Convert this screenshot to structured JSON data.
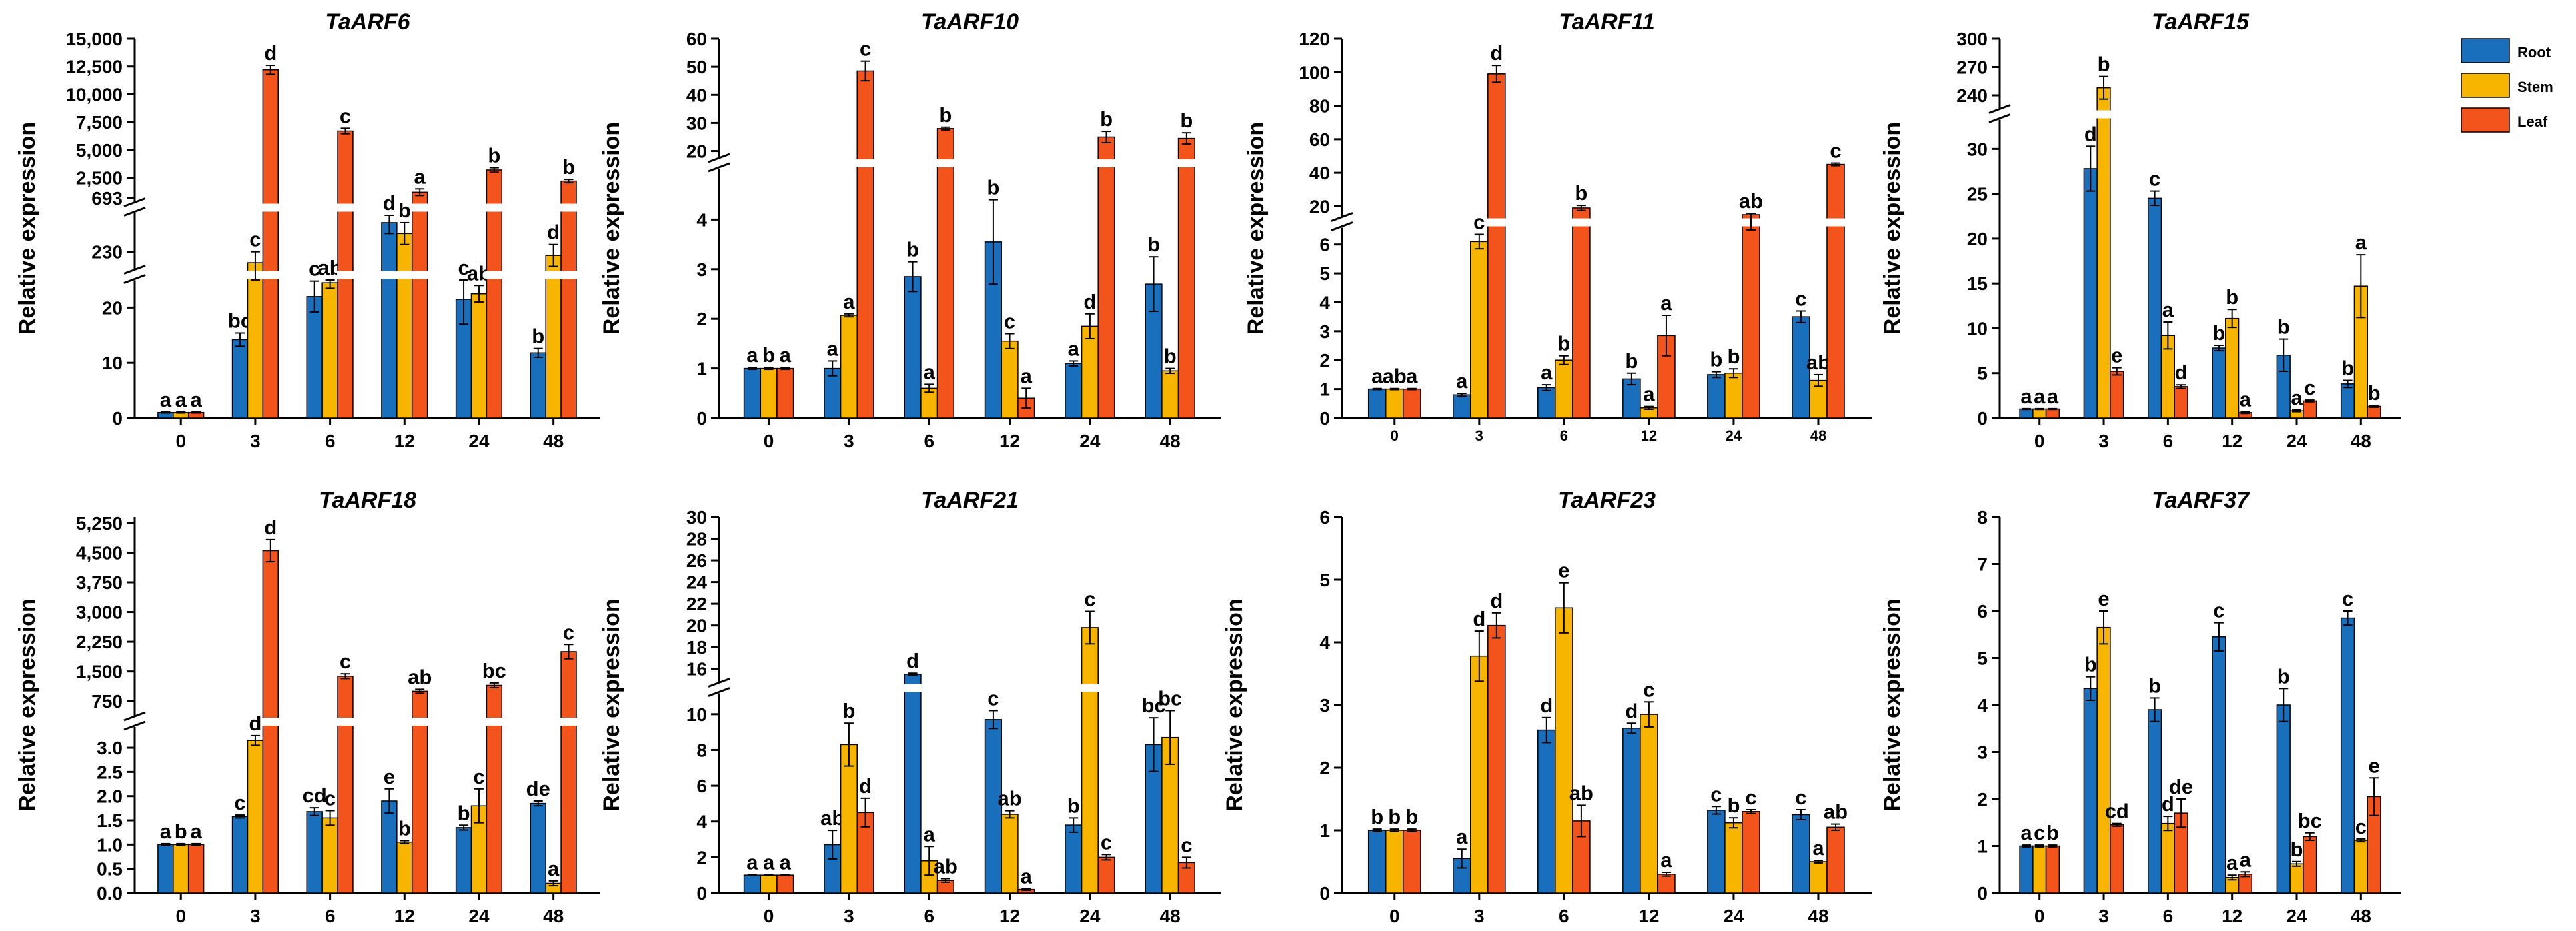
{
  "figure": {
    "ylabel": "Relative expression",
    "colors": {
      "Root": "#1a6fbd",
      "Stem": "#f7b500",
      "Leaf": "#f2541b"
    },
    "legend": [
      "Root",
      "Stem",
      "Leaf"
    ],
    "xticks": [
      "0",
      "3",
      "6",
      "12",
      "24",
      "48"
    ]
  },
  "chart_data": [
    {
      "type": "bar",
      "title": "TaARF6",
      "xlabel": "",
      "ylabel": "Relative expression",
      "categories": [
        "0",
        "3",
        "6",
        "12",
        "24",
        "48"
      ],
      "y_axis_breaks": [
        [
          25,
          225
        ],
        [
          240,
          500
        ]
      ],
      "yticks": [
        "0",
        "10",
        "20",
        "230",
        "693",
        "2,500",
        "5,000",
        "7,500",
        "10,000",
        "12,500",
        "15,000"
      ],
      "series": [
        {
          "name": "Root",
          "values": [
            1,
            14.2,
            22,
            238,
            21.5,
            11.8
          ],
          "errors": [
            0.1,
            1.2,
            2.8,
            3,
            4.5,
            0.8
          ],
          "labels": [
            "a",
            "bc",
            "c",
            "d",
            "c",
            "b"
          ]
        },
        {
          "name": "Stem",
          "values": [
            1,
            227,
            24.5,
            235,
            22.5,
            229
          ],
          "errors": [
            0.1,
            3,
            1,
            3,
            1.5,
            3
          ],
          "labels": [
            "a",
            "c",
            "ab",
            "b",
            "ab",
            "d"
          ]
        },
        {
          "name": "Leaf",
          "values": [
            1,
            12200,
            6700,
            1200,
            3200,
            2200
          ],
          "errors": [
            0.1,
            400,
            250,
            300,
            200,
            150
          ],
          "labels": [
            "a",
            "d",
            "c",
            "a",
            "b",
            "b"
          ]
        }
      ]
    },
    {
      "type": "bar",
      "title": "TaARF10",
      "xlabel": "",
      "ylabel": "Relative expression",
      "categories": [
        "0",
        "3",
        "6",
        "12",
        "24",
        "48"
      ],
      "y_axis_breaks": [
        [
          5,
          18
        ]
      ],
      "yticks": [
        "0",
        "1",
        "2",
        "3",
        "4",
        "20",
        "30",
        "40",
        "50",
        "60"
      ],
      "series": [
        {
          "name": "Root",
          "values": [
            1,
            1,
            2.85,
            3.55,
            1.1,
            2.7
          ],
          "errors": [
            0.02,
            0.15,
            0.3,
            0.85,
            0.05,
            0.55
          ],
          "labels": [
            "a",
            "a",
            "b",
            "b",
            "a",
            "b"
          ]
        },
        {
          "name": "Stem",
          "values": [
            1,
            2.07,
            0.6,
            1.55,
            1.85,
            0.95
          ],
          "errors": [
            0.02,
            0.03,
            0.08,
            0.15,
            0.25,
            0.05
          ],
          "labels": [
            "b",
            "a",
            "a",
            "c",
            "d",
            "b"
          ]
        },
        {
          "name": "Leaf",
          "values": [
            1,
            48.5,
            28,
            0.4,
            25,
            24.5
          ],
          "errors": [
            0.02,
            3.5,
            0.5,
            0.2,
            2,
            2
          ],
          "labels": [
            "a",
            "c",
            "b",
            "a",
            "b",
            "b"
          ]
        }
      ]
    },
    {
      "type": "bar",
      "title": "TaARF11",
      "xlabel": "",
      "ylabel": "Relative expression",
      "categories": [
        "0",
        "3",
        "6",
        "12",
        "24",
        "48"
      ],
      "y_axis_breaks": [
        [
          6.5,
          15
        ]
      ],
      "yticks": [
        "0",
        "1",
        "2",
        "3",
        "4",
        "5",
        "6",
        "20",
        "40",
        "60",
        "80",
        "100",
        "120"
      ],
      "series": [
        {
          "name": "Root",
          "values": [
            1,
            0.8,
            1.05,
            1.35,
            1.5,
            3.5
          ],
          "errors": [
            0.02,
            0.05,
            0.1,
            0.2,
            0.1,
            0.2
          ],
          "labels": [
            "a",
            "a",
            "a",
            "b",
            "b",
            "c"
          ]
        },
        {
          "name": "Stem",
          "values": [
            1,
            6.1,
            2,
            0.35,
            1.55,
            1.3
          ],
          "errors": [
            0.02,
            0.25,
            0.15,
            0.05,
            0.15,
            0.2
          ],
          "labels": [
            "ab",
            "c",
            "b",
            "a",
            "b",
            "ab"
          ]
        },
        {
          "name": "Leaf",
          "values": [
            1,
            99,
            19,
            2.85,
            15,
            45
          ],
          "errors": [
            0.02,
            5,
            1.5,
            0.7,
            0.8,
            0.8
          ],
          "labels": [
            "a",
            "d",
            "b",
            "a",
            "ab",
            "c"
          ]
        }
      ]
    },
    {
      "type": "bar",
      "title": "TaARF15",
      "xlabel": "",
      "ylabel": "Relative expression",
      "categories": [
        "0",
        "3",
        "6",
        "12",
        "24",
        "48"
      ],
      "y_axis_breaks": [
        [
          33,
          228
        ]
      ],
      "yticks": [
        "0",
        "5",
        "10",
        "15",
        "20",
        "25",
        "30",
        "240",
        "270",
        "300"
      ],
      "series": [
        {
          "name": "Root",
          "values": [
            1,
            27.8,
            24.5,
            7.8,
            7,
            3.8
          ],
          "errors": [
            0.05,
            2.5,
            0.8,
            0.3,
            1.8,
            0.4
          ],
          "labels": [
            "a",
            "d",
            "c",
            "b",
            "b",
            "b"
          ]
        },
        {
          "name": "Stem",
          "values": [
            1,
            248,
            9.2,
            11.1,
            0.8,
            14.7
          ],
          "errors": [
            0.05,
            12,
            1.5,
            1,
            0.1,
            3.5
          ],
          "labels": [
            "a",
            "b",
            "a",
            "b",
            "a",
            "a"
          ]
        },
        {
          "name": "Leaf",
          "values": [
            1,
            5.2,
            3.5,
            0.6,
            1.9,
            1.3
          ],
          "errors": [
            0.05,
            0.4,
            0.2,
            0.1,
            0.1,
            0.1
          ],
          "labels": [
            "a",
            "e",
            "d",
            "a",
            "c",
            "b"
          ]
        }
      ]
    },
    {
      "type": "bar",
      "title": "TaARF18",
      "xlabel": "",
      "ylabel": "Relative expression",
      "categories": [
        "0",
        "3",
        "6",
        "12",
        "24",
        "48"
      ],
      "y_axis_breaks": [
        [
          3.4,
          400
        ]
      ],
      "yticks": [
        "0.0",
        "0.5",
        "1.0",
        "1.5",
        "2.0",
        "2.5",
        "3.0",
        "750",
        "1,500",
        "2,250",
        "3,000",
        "3,750",
        "4,500",
        "5,250"
      ],
      "series": [
        {
          "name": "Root",
          "values": [
            1,
            1.58,
            1.68,
            1.9,
            1.35,
            1.85
          ],
          "errors": [
            0.02,
            0.03,
            0.08,
            0.25,
            0.05,
            0.05
          ],
          "labels": [
            "a",
            "c",
            "cd",
            "e",
            "b",
            "de"
          ]
        },
        {
          "name": "Stem",
          "values": [
            1,
            3.15,
            1.55,
            1.05,
            1.8,
            0.2
          ],
          "errors": [
            0.02,
            0.1,
            0.15,
            0.03,
            0.35,
            0.05
          ],
          "labels": [
            "b",
            "d",
            "c",
            "b",
            "c",
            "a"
          ]
        },
        {
          "name": "Leaf",
          "values": [
            1,
            4550,
            1380,
            1000,
            1150,
            2000
          ],
          "errors": [
            0.02,
            280,
            60,
            50,
            60,
            180
          ],
          "labels": [
            "a",
            "d",
            "c",
            "ab",
            "bc",
            "c"
          ]
        }
      ]
    },
    {
      "type": "bar",
      "title": "TaARF21",
      "xlabel": "",
      "ylabel": "Relative expression",
      "categories": [
        "0",
        "3",
        "6",
        "12",
        "24",
        "48"
      ],
      "y_axis_breaks": [
        [
          11,
          15
        ]
      ],
      "yticks": [
        "0",
        "2",
        "4",
        "6",
        "8",
        "10",
        "16",
        "18",
        "20",
        "22",
        "24",
        "26",
        "28",
        "30"
      ],
      "series": [
        {
          "name": "Root",
          "values": [
            1,
            2.7,
            15.5,
            9.7,
            3.8,
            8.3
          ],
          "errors": [
            0.02,
            0.8,
            0.1,
            0.5,
            0.4,
            1.5
          ],
          "labels": [
            "a",
            "ab",
            "d",
            "c",
            "b",
            "bc"
          ]
        },
        {
          "name": "Stem",
          "values": [
            1,
            8.3,
            1.8,
            4.4,
            19.8,
            8.7
          ],
          "errors": [
            0.02,
            1.2,
            0.8,
            0.2,
            1.5,
            1.5
          ],
          "labels": [
            "a",
            "b",
            "a",
            "ab",
            "c",
            "bc"
          ]
        },
        {
          "name": "Leaf",
          "values": [
            1,
            4.5,
            0.7,
            0.2,
            2,
            1.7
          ],
          "errors": [
            0.02,
            0.8,
            0.1,
            0.05,
            0.15,
            0.3
          ],
          "labels": [
            "a",
            "d",
            "ab",
            "a",
            "c",
            "c"
          ]
        }
      ]
    },
    {
      "type": "bar",
      "title": "TaARF23",
      "xlabel": "",
      "ylabel": "Relative expression",
      "categories": [
        "0",
        "3",
        "6",
        "12",
        "24",
        "48"
      ],
      "ylim": [
        0,
        6
      ],
      "yticks": [
        "0",
        "1",
        "2",
        "3",
        "4",
        "5",
        "6"
      ],
      "series": [
        {
          "name": "Root",
          "values": [
            1,
            0.55,
            2.6,
            2.63,
            1.32,
            1.25
          ],
          "errors": [
            0.02,
            0.15,
            0.2,
            0.08,
            0.06,
            0.08
          ],
          "labels": [
            "b",
            "a",
            "d",
            "d",
            "c",
            "c"
          ]
        },
        {
          "name": "Stem",
          "values": [
            1,
            3.78,
            4.55,
            2.85,
            1.12,
            0.5
          ],
          "errors": [
            0.02,
            0.4,
            0.4,
            0.2,
            0.08,
            0.02
          ],
          "labels": [
            "b",
            "d",
            "e",
            "c",
            "b",
            "a"
          ]
        },
        {
          "name": "Leaf",
          "values": [
            1,
            4.27,
            1.15,
            0.3,
            1.3,
            1.05
          ],
          "errors": [
            0.02,
            0.2,
            0.25,
            0.03,
            0.03,
            0.05
          ],
          "labels": [
            "b",
            "d",
            "ab",
            "a",
            "c",
            "ab"
          ]
        }
      ]
    },
    {
      "type": "bar",
      "title": "TaARF37",
      "xlabel": "",
      "ylabel": "Relative expression",
      "categories": [
        "0",
        "3",
        "6",
        "12",
        "24",
        "48"
      ],
      "ylim": [
        0,
        8
      ],
      "yticks": [
        "0",
        "1",
        "2",
        "3",
        "4",
        "5",
        "6",
        "7",
        "8"
      ],
      "series": [
        {
          "name": "Root",
          "values": [
            1,
            4.35,
            3.9,
            5.45,
            4,
            5.85
          ],
          "errors": [
            0.02,
            0.25,
            0.25,
            0.3,
            0.35,
            0.15
          ],
          "labels": [
            "a",
            "b",
            "b",
            "c",
            "b",
            "c"
          ]
        },
        {
          "name": "Stem",
          "values": [
            1,
            5.65,
            1.48,
            0.33,
            0.62,
            1.12
          ],
          "errors": [
            0.02,
            0.35,
            0.15,
            0.05,
            0.05,
            0.03
          ],
          "labels": [
            "c",
            "e",
            "d",
            "a",
            "b",
            "c"
          ]
        },
        {
          "name": "Leaf",
          "values": [
            1,
            1.45,
            1.7,
            0.4,
            1.2,
            2.05
          ],
          "errors": [
            0.02,
            0.03,
            0.3,
            0.05,
            0.08,
            0.4
          ],
          "labels": [
            "b",
            "cd",
            "de",
            "a",
            "bc",
            "e"
          ]
        }
      ]
    }
  ]
}
